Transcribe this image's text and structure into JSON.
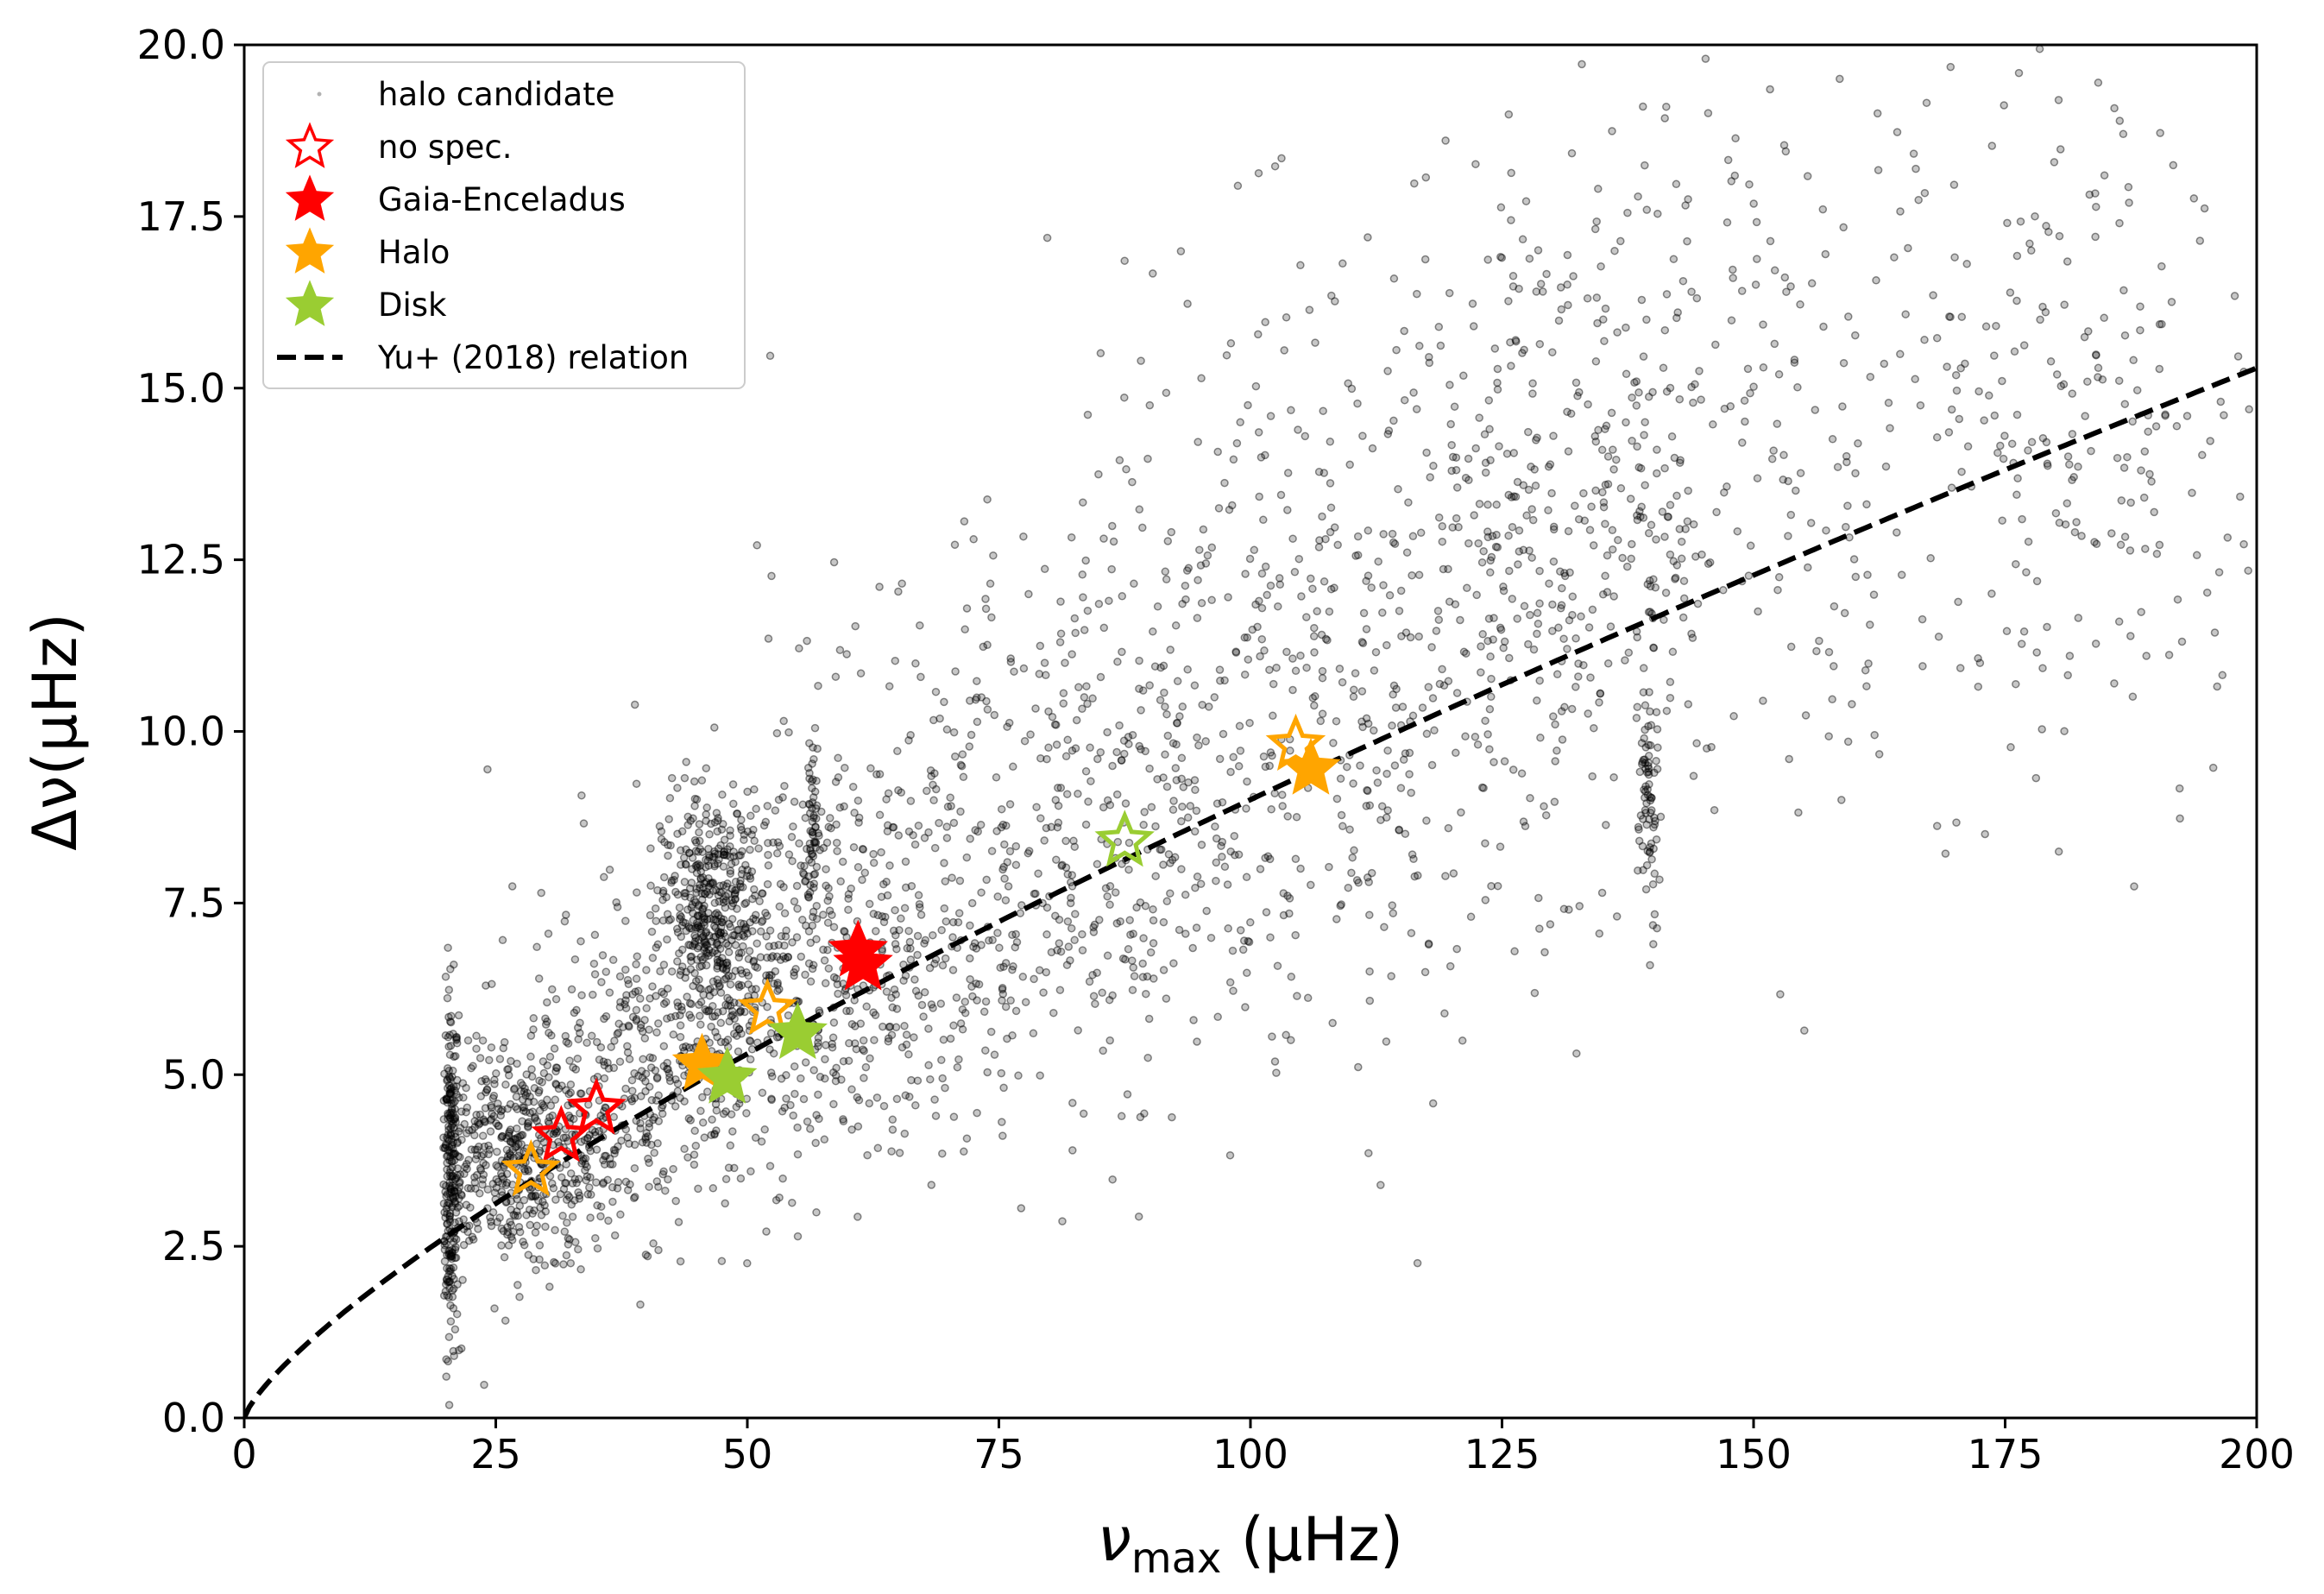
{
  "chart_data": {
    "type": "scatter",
    "xlabel": "ν_max (μHz)",
    "xlabel_main": "ν",
    "xlabel_sub": "max",
    "xlabel_unit": " (μHz)",
    "ylabel": "Δν(μHz)",
    "xlim": [
      0,
      200
    ],
    "ylim": [
      0,
      20
    ],
    "x_ticks": [
      0,
      25,
      50,
      75,
      100,
      125,
      150,
      175,
      200
    ],
    "x_tick_labels": [
      "0",
      "25",
      "50",
      "75",
      "100",
      "125",
      "150",
      "175",
      "200"
    ],
    "y_ticks": [
      0,
      2.5,
      5,
      7.5,
      10,
      12.5,
      15,
      17.5,
      20
    ],
    "y_tick_labels": [
      "0.0",
      "2.5",
      "5.0",
      "7.5",
      "10.0",
      "12.5",
      "15.0",
      "17.5",
      "20.0"
    ],
    "grid": false,
    "legend_position": "top-left",
    "legend": [
      {
        "key": "halo",
        "label": "halo candidate"
      },
      {
        "key": "nospec",
        "label": "no spec."
      },
      {
        "key": "ge",
        "label": "Gaia-Enceladus"
      },
      {
        "key": "halostar",
        "label": "Halo"
      },
      {
        "key": "disk",
        "label": "Disk"
      },
      {
        "key": "relation",
        "label": "Yu+ (2018) relation"
      }
    ],
    "colors": {
      "halo_points": "#000000",
      "gaia_enceladus": "#ff0000",
      "halo": "#ffa500",
      "disk": "#9acd32",
      "relation": "#000000"
    },
    "relation": {
      "name": "Yu+ (2018) relation",
      "coefficient": 0.267,
      "exponent": 0.764
    },
    "background_clusters": [
      {
        "x_center": 20.5,
        "x_spread": 0.4,
        "y_center": 3.6,
        "y_spread": 1.3,
        "n": 260
      },
      {
        "x_center": 27,
        "x_spread": 5.5,
        "y_center": 3.7,
        "y_spread": 0.8,
        "n": 520
      },
      {
        "x_center": 46.5,
        "x_spread": 2.5,
        "y_center": 7.3,
        "y_spread": 0.9,
        "n": 420
      },
      {
        "x_center": 40,
        "x_spread": 9,
        "y_center": 5.0,
        "y_spread": 1.1,
        "n": 420
      },
      {
        "x_center": 58,
        "x_spread": 10,
        "y_center": 6.5,
        "y_spread": 1.4,
        "n": 460
      },
      {
        "x_center": 80,
        "x_spread": 14,
        "y_center": 8.7,
        "y_spread": 1.9,
        "n": 520
      },
      {
        "x_center": 108,
        "x_spread": 14,
        "y_center": 11.0,
        "y_spread": 2.8,
        "n": 460
      },
      {
        "x_center": 132,
        "x_spread": 9,
        "y_center": 13.2,
        "y_spread": 2.5,
        "n": 340
      },
      {
        "x_center": 139.5,
        "x_spread": 0.5,
        "y_center": 9.0,
        "y_spread": 1.0,
        "n": 80
      },
      {
        "x_center": 160,
        "x_spread": 16,
        "y_center": 14.5,
        "y_spread": 2.6,
        "n": 260
      },
      {
        "x_center": 186,
        "x_spread": 9,
        "y_center": 14.5,
        "y_spread": 2.3,
        "n": 160
      },
      {
        "x_center": 56.5,
        "x_spread": 0.3,
        "y_center": 8.5,
        "y_spread": 0.8,
        "n": 60
      }
    ],
    "series": [
      {
        "name": "Gaia-Enceladus",
        "points": [
          {
            "x": 31.5,
            "y": 4.1,
            "spec": true
          },
          {
            "x": 35,
            "y": 4.5,
            "spec": true
          },
          {
            "x": 61,
            "y": 6.8,
            "spec": false
          },
          {
            "x": 61.5,
            "y": 6.6,
            "spec": false
          }
        ]
      },
      {
        "name": "Halo",
        "points": [
          {
            "x": 28.5,
            "y": 3.6,
            "spec": true
          },
          {
            "x": 45.5,
            "y": 5.15,
            "spec": false
          },
          {
            "x": 52,
            "y": 5.95,
            "spec": true
          },
          {
            "x": 104.5,
            "y": 9.8,
            "spec": true
          },
          {
            "x": 106,
            "y": 9.45,
            "spec": false
          }
        ]
      },
      {
        "name": "Disk",
        "points": [
          {
            "x": 48,
            "y": 4.95,
            "spec": false
          },
          {
            "x": 55,
            "y": 5.6,
            "spec": false
          },
          {
            "x": 87.5,
            "y": 8.4,
            "spec": true
          }
        ]
      }
    ]
  }
}
